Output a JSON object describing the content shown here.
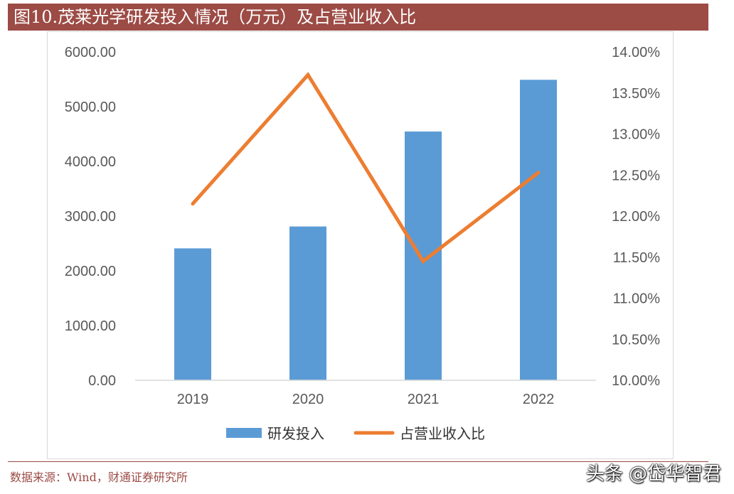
{
  "title": "图10.茂莱光学研发投入情况（万元）及占营业收入比",
  "source": "数据来源：Wind，财通证券研究所",
  "watermark": "头条 @岱华智君",
  "colors": {
    "bar": "#5b9bd5",
    "line": "#ed7d31",
    "title_bg": "#9c4b45"
  },
  "chart_data": {
    "type": "bar",
    "categories": [
      "2019",
      "2020",
      "2021",
      "2022"
    ],
    "series": [
      {
        "name": "研发投入",
        "type": "bar",
        "axis": "left",
        "values": [
          2410,
          2810,
          4545,
          5490
        ]
      },
      {
        "name": "占营业收入比",
        "type": "line",
        "axis": "right",
        "values": [
          12.15,
          13.72,
          11.45,
          12.53
        ]
      }
    ],
    "y_left": {
      "min": 0,
      "max": 6000,
      "step": 1000,
      "ticks": [
        "0.00",
        "1000.00",
        "2000.00",
        "3000.00",
        "4000.00",
        "5000.00",
        "6000.00"
      ]
    },
    "y_right": {
      "min": 10,
      "max": 14,
      "step": 0.5,
      "ticks": [
        "10.00%",
        "10.50%",
        "11.00%",
        "11.50%",
        "12.00%",
        "12.50%",
        "13.00%",
        "13.50%",
        "14.00%"
      ]
    },
    "grid": false,
    "legend": "bottom"
  }
}
